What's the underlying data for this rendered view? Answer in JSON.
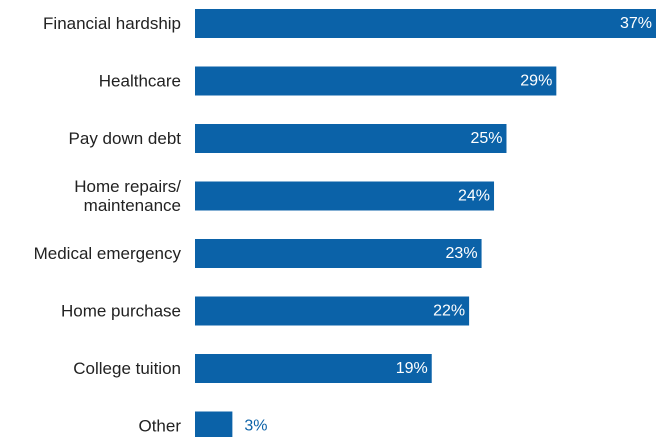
{
  "chart_data": {
    "type": "bar",
    "orientation": "horizontal",
    "categories": [
      [
        "Financial hardship"
      ],
      [
        "Healthcare"
      ],
      [
        "Pay down debt"
      ],
      [
        "Home repairs/",
        "maintenance"
      ],
      [
        "Medical emergency"
      ],
      [
        "Home purchase"
      ],
      [
        "College tuition"
      ],
      [
        "Other"
      ]
    ],
    "values": [
      37,
      29,
      25,
      24,
      23,
      22,
      19,
      3
    ],
    "value_labels": [
      "37%",
      "29%",
      "25%",
      "24%",
      "23%",
      "22%",
      "19%",
      "3%"
    ],
    "unit": "%",
    "xlim": [
      0,
      37
    ],
    "grid": false,
    "legend": "none",
    "colors": {
      "bar": "#0B62A8",
      "value_inside": "#FFFFFF",
      "value_outside": "#0B62A8",
      "category_text": "#222222"
    }
  }
}
